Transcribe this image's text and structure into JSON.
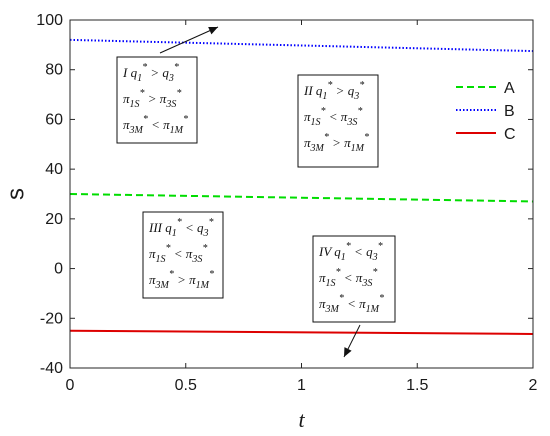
{
  "chart_data": {
    "type": "line",
    "xlabel": "t",
    "ylabel": "s",
    "xlim": [
      0,
      2
    ],
    "ylim": [
      -40,
      100
    ],
    "xticks": [
      0,
      0.5,
      1,
      1.5,
      2
    ],
    "xtick_labels": [
      "0",
      "0.5",
      "1",
      "1.5",
      "2"
    ],
    "yticks": [
      -40,
      -20,
      0,
      20,
      40,
      60,
      80,
      100
    ],
    "ytick_labels": [
      "-40",
      "-20",
      "0",
      "20",
      "40",
      "60",
      "80",
      "100"
    ],
    "grid": false,
    "legend_position": "top-right",
    "series": [
      {
        "name": "A",
        "color": "#00dd00",
        "style": "dashed",
        "x": [
          0,
          2
        ],
        "y": [
          30,
          27
        ]
      },
      {
        "name": "B",
        "color": "#0000ff",
        "style": "dotted",
        "x": [
          0,
          2
        ],
        "y": [
          92,
          87.5
        ]
      },
      {
        "name": "C",
        "color": "#dd0000",
        "style": "solid",
        "x": [
          0,
          2
        ],
        "y": [
          -25,
          -26.3
        ]
      }
    ],
    "annotations": [
      {
        "id": "I",
        "lines": [
          [
            "I q",
            "1",
            "*",
            " > ",
            "q",
            "3",
            "*"
          ],
          [
            "π",
            "1S",
            "*",
            " > ",
            "π",
            "3S",
            "*"
          ],
          [
            "π",
            "3M",
            "*",
            " < ",
            "π",
            "1M",
            "*"
          ]
        ],
        "arrow_direction": "up-right"
      },
      {
        "id": "II",
        "lines": [
          [
            "II q",
            "1",
            "*",
            " > ",
            "q",
            "3",
            "*"
          ],
          [
            "π",
            "1S",
            "*",
            " < ",
            "π",
            "3S",
            "*"
          ],
          [
            "π",
            "3M",
            "*",
            " > ",
            "π",
            "1M",
            "*"
          ]
        ]
      },
      {
        "id": "III",
        "lines": [
          [
            "III q",
            "1",
            "*",
            " < ",
            "q",
            "3",
            "*"
          ],
          [
            "π",
            "1S",
            "*",
            " < ",
            "π",
            "3S",
            "*"
          ],
          [
            "π",
            "3M",
            "*",
            " > ",
            "π",
            "1M",
            "*"
          ]
        ]
      },
      {
        "id": "IV",
        "lines": [
          [
            "IV q",
            "1",
            "*",
            " < ",
            "q",
            "3",
            "*"
          ],
          [
            "π",
            "1S",
            "*",
            " < ",
            "π",
            "3S",
            "*"
          ],
          [
            "π",
            "3M",
            "*",
            " < ",
            "π",
            "1M",
            "*"
          ]
        ],
        "arrow_direction": "down-left"
      }
    ]
  }
}
